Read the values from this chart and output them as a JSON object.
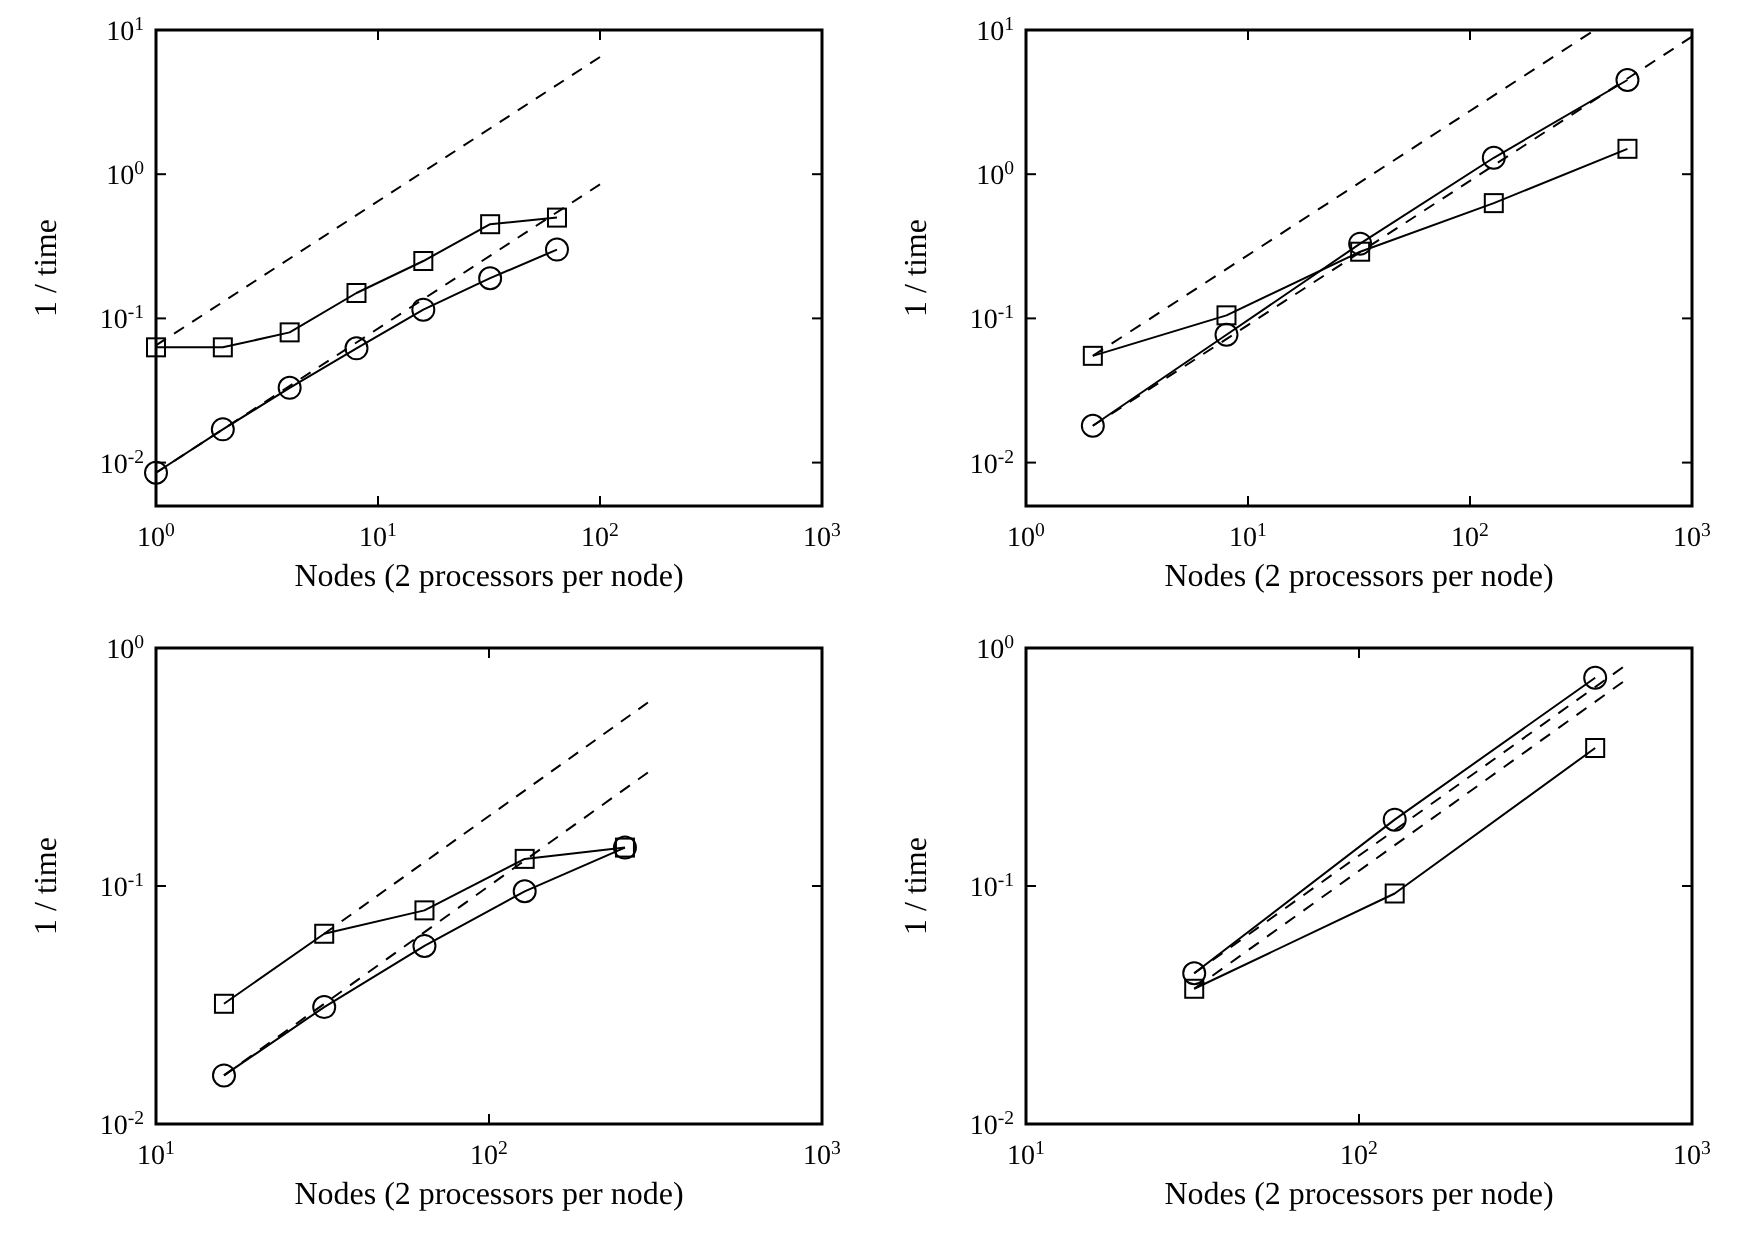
{
  "chart_data": [
    {
      "type": "line",
      "xlabel": "Nodes (2 processors per node)",
      "ylabel": "1 / time",
      "log": "xy",
      "grid": false,
      "xlim": [
        1,
        1000
      ],
      "ylim": [
        0.005,
        10
      ],
      "xticks": [
        {
          "value": 1,
          "label": "10$^{0}$"
        },
        {
          "value": 10,
          "label": "10$^{1}$"
        },
        {
          "value": 100,
          "label": "10$^{2}$"
        },
        {
          "value": 1000,
          "label": "10$^{3}$"
        }
      ],
      "yticks": [
        {
          "value": 0.01,
          "label": "10$^{-2}$"
        },
        {
          "value": 0.1,
          "label": "10$^{-1}$"
        },
        {
          "value": 1,
          "label": "10$^{0}$"
        },
        {
          "value": 10,
          "label": "10$^{1}$"
        }
      ],
      "series": [
        {
          "color": "#000000",
          "marker": "square",
          "line_style": "solid",
          "x": [
            1,
            2,
            4,
            8,
            16,
            32,
            64
          ],
          "values": [
            0.063,
            0.063,
            0.08,
            0.15,
            0.25,
            0.45,
            0.5
          ]
        },
        {
          "color": "#000000",
          "marker": "circle",
          "line_style": "solid",
          "x": [
            1,
            2,
            4,
            8,
            16,
            32,
            64
          ],
          "values": [
            0.0085,
            0.017,
            0.033,
            0.062,
            0.115,
            0.19,
            0.3
          ]
        },
        {
          "color": "#000000",
          "marker": "none",
          "line_style": "dashed",
          "x": [
            1,
            100
          ],
          "values": [
            0.065,
            6.5
          ]
        },
        {
          "color": "#000000",
          "marker": "none",
          "line_style": "dashed",
          "x": [
            1,
            100
          ],
          "values": [
            0.0085,
            0.85
          ]
        }
      ]
    },
    {
      "type": "line",
      "xlabel": "Nodes (2 processors per node)",
      "ylabel": "1 / time",
      "log": "xy",
      "grid": false,
      "xlim": [
        1,
        1000
      ],
      "ylim": [
        0.005,
        10
      ],
      "xticks": [
        {
          "value": 1,
          "label": "10$^{0}$"
        },
        {
          "value": 10,
          "label": "10$^{1}$"
        },
        {
          "value": 100,
          "label": "10$^{2}$"
        },
        {
          "value": 1000,
          "label": "10$^{3}$"
        }
      ],
      "yticks": [
        {
          "value": 0.01,
          "label": "10$^{-2}$"
        },
        {
          "value": 0.1,
          "label": "10$^{-1}$"
        },
        {
          "value": 1,
          "label": "10$^{0}$"
        },
        {
          "value": 10,
          "label": "10$^{1}$"
        }
      ],
      "series": [
        {
          "color": "#000000",
          "marker": "square",
          "line_style": "solid",
          "x": [
            2,
            8,
            32,
            128,
            512
          ],
          "values": [
            0.055,
            0.105,
            0.29,
            0.63,
            1.5
          ]
        },
        {
          "color": "#000000",
          "marker": "circle",
          "line_style": "solid",
          "x": [
            2,
            8,
            32,
            128,
            512
          ],
          "values": [
            0.018,
            0.077,
            0.33,
            1.3,
            4.5
          ]
        },
        {
          "color": "#000000",
          "marker": "none",
          "line_style": "dashed",
          "x": [
            2,
            350
          ],
          "values": [
            0.055,
            9.6
          ]
        },
        {
          "color": "#000000",
          "marker": "none",
          "line_style": "dashed",
          "x": [
            2,
            1000
          ],
          "values": [
            0.018,
            9
          ]
        }
      ]
    },
    {
      "type": "line",
      "xlabel": "Nodes (2 processors per node)",
      "ylabel": "1 / time",
      "log": "xy",
      "grid": false,
      "xlim": [
        10,
        1000
      ],
      "ylim": [
        0.01,
        1
      ],
      "xticks": [
        {
          "value": 10,
          "label": "10$^{1}$"
        },
        {
          "value": 100,
          "label": "10$^{2}$"
        },
        {
          "value": 1000,
          "label": "10$^{3}$"
        }
      ],
      "yticks": [
        {
          "value": 0.01,
          "label": "10$^{-2}$"
        },
        {
          "value": 0.1,
          "label": "10$^{-1}$"
        },
        {
          "value": 1,
          "label": "10$^{0}$"
        }
      ],
      "series": [
        {
          "color": "#000000",
          "marker": "square",
          "line_style": "solid",
          "x": [
            16,
            32,
            64,
            128,
            256
          ],
          "values": [
            0.032,
            0.063,
            0.079,
            0.13,
            0.145
          ]
        },
        {
          "color": "#000000",
          "marker": "circle",
          "line_style": "solid",
          "x": [
            16,
            32,
            64,
            128,
            256
          ],
          "values": [
            0.016,
            0.031,
            0.056,
            0.095,
            0.145
          ]
        },
        {
          "color": "#000000",
          "marker": "none",
          "line_style": "dashed",
          "x": [
            32,
            300
          ],
          "values": [
            0.063,
            0.59
          ]
        },
        {
          "color": "#000000",
          "marker": "none",
          "line_style": "dashed",
          "x": [
            16,
            300
          ],
          "values": [
            0.016,
            0.3
          ]
        }
      ]
    },
    {
      "type": "line",
      "xlabel": "Nodes (2 processors per node)",
      "ylabel": "1 / time",
      "log": "xy",
      "grid": false,
      "xlim": [
        10,
        1000
      ],
      "ylim": [
        0.01,
        1
      ],
      "xticks": [
        {
          "value": 10,
          "label": "10$^{1}$"
        },
        {
          "value": 100,
          "label": "10$^{2}$"
        },
        {
          "value": 1000,
          "label": "10$^{3}$"
        }
      ],
      "yticks": [
        {
          "value": 0.01,
          "label": "10$^{-2}$"
        },
        {
          "value": 0.1,
          "label": "10$^{-1}$"
        },
        {
          "value": 1,
          "label": "10$^{0}$"
        }
      ],
      "series": [
        {
          "color": "#000000",
          "marker": "square",
          "line_style": "solid",
          "x": [
            32,
            128,
            512
          ],
          "values": [
            0.037,
            0.093,
            0.38
          ]
        },
        {
          "color": "#000000",
          "marker": "circle",
          "line_style": "solid",
          "x": [
            32,
            128,
            512
          ],
          "values": [
            0.043,
            0.19,
            0.75
          ]
        },
        {
          "color": "#000000",
          "marker": "none",
          "line_style": "dashed",
          "x": [
            32,
            620
          ],
          "values": [
            0.043,
            0.83
          ]
        },
        {
          "color": "#000000",
          "marker": "none",
          "line_style": "dashed",
          "x": [
            32,
            620
          ],
          "values": [
            0.037,
            0.72
          ]
        }
      ]
    }
  ]
}
